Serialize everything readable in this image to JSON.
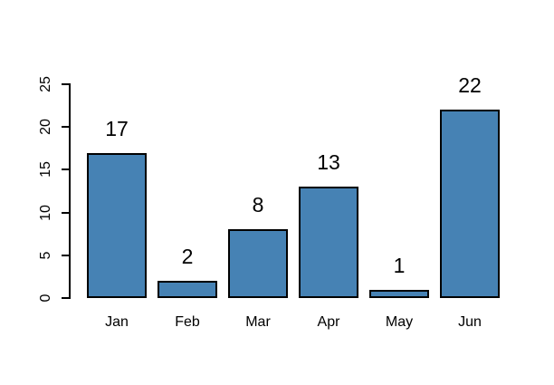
{
  "chart_data": {
    "type": "bar",
    "title": "",
    "xlabel": "",
    "ylabel": "",
    "categories": [
      "Jan",
      "Feb",
      "Mar",
      "Apr",
      "May",
      "Jun"
    ],
    "values": [
      17,
      2,
      8,
      13,
      1,
      22
    ],
    "value_labels": [
      "17",
      "2",
      "8",
      "13",
      "1",
      "22"
    ],
    "ylim": [
      0,
      25
    ],
    "yticks": [
      0,
      5,
      10,
      15,
      20,
      25
    ],
    "ytick_labels": [
      "0",
      "5",
      "10",
      "15",
      "20",
      "25"
    ],
    "grid": false,
    "legend": null,
    "bar_fill_color": "#4682B4",
    "bar_border_color": "#000000",
    "axis_color": "#000000",
    "text_color": "#000000",
    "background_color": "#FFFFFF"
  }
}
